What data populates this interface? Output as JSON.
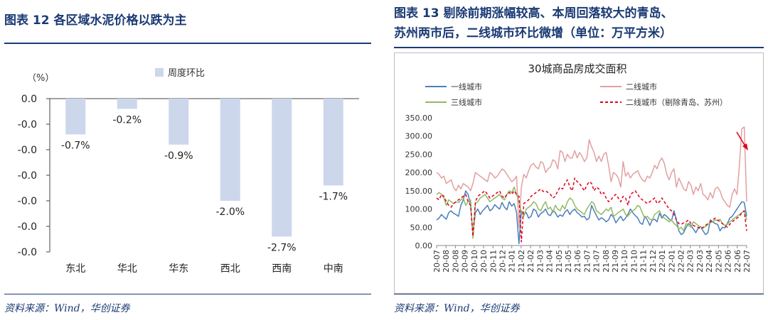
{
  "left": {
    "title": "图表 12   各区域水泥价格以跌为主",
    "source": "资料来源：Wind，华创证券"
  },
  "right": {
    "title_line1": "图表 13   剔除前期涨幅较高、本周回落较大的青岛、",
    "title_line2": "苏州两市后，二线城市环比微增（单位：万平方米）",
    "source": "资料来源：Wind，华创证券"
  },
  "chart_data": [
    {
      "type": "bar",
      "unit_label": "（%）",
      "series": [
        {
          "name": "周度环比",
          "values": [
            -0.7,
            -0.2,
            -0.9,
            -2.0,
            -2.7,
            -1.7
          ]
        }
      ],
      "categories": [
        "东北",
        "华北",
        "华东",
        "西北",
        "西南",
        "中南"
      ],
      "data_labels": [
        "-0.7%",
        "-0.2%",
        "-0.9%",
        "-2.0%",
        "-2.7%",
        "-1.7%"
      ],
      "yticks": [
        "0.0",
        "-0.0",
        "-0.0",
        "-0.0",
        "-0.0",
        "-0.0",
        "-0.0"
      ],
      "ylim": [
        -3.0,
        0.0
      ],
      "colors": {
        "bar": "#ccd7ec",
        "label": "#e0001c"
      },
      "legend_position": "top"
    },
    {
      "type": "line",
      "title": "30城商品房成交面积",
      "ylim": [
        0,
        350
      ],
      "yticks": [
        "0.00",
        "50.00",
        "100.00",
        "150.00",
        "200.00",
        "250.00",
        "300.00",
        "350.00"
      ],
      "xticks": [
        "20-07",
        "20-08",
        "20-08",
        "20-09",
        "20-10",
        "20-10",
        "20-11",
        "20-12",
        "21-01",
        "21-02",
        "21-02",
        "21-03",
        "21-04",
        "21-05",
        "21-05",
        "21-06",
        "21-07",
        "21-07",
        "21-08",
        "21-09",
        "21-10",
        "21-10",
        "21-11",
        "21-12",
        "22-01",
        "22-01",
        "22-02",
        "22-03",
        "22-03",
        "22-04",
        "22-05",
        "22-06",
        "22-06",
        "22-07"
      ],
      "legend_position": "top",
      "series": [
        {
          "name": "一线城市",
          "color": "#4a7ebb",
          "dash": "",
          "values": [
            70,
            75,
            85,
            78,
            72,
            90,
            95,
            88,
            85,
            80,
            110,
            125,
            150,
            140,
            110,
            32,
            90,
            100,
            85,
            95,
            102,
            110,
            95,
            100,
            112,
            105,
            100,
            118,
            105,
            98,
            120,
            108,
            115,
            90,
            5,
            95,
            85,
            90,
            75,
            80,
            100,
            95,
            78,
            88,
            92,
            100,
            85,
            82,
            96,
            90,
            78,
            84,
            80,
            92,
            98,
            85,
            95,
            100,
            90,
            85,
            78,
            80,
            70,
            75,
            110,
            95,
            82,
            70,
            76,
            72,
            65,
            70,
            85,
            78,
            62,
            72,
            80,
            68,
            75,
            86,
            100,
            90,
            82,
            76,
            62,
            58,
            80,
            70,
            55,
            70,
            72,
            65,
            88,
            75,
            85,
            80,
            72,
            68,
            95,
            70,
            40,
            30,
            35,
            50,
            60,
            55,
            45,
            35,
            48,
            52,
            40,
            30,
            35,
            70,
            65,
            60,
            58,
            40,
            50,
            48,
            60,
            75,
            80,
            90,
            100,
            110,
            120,
            118,
            80
          ]
        },
        {
          "name": "二线城市",
          "color": "#e2a0a0",
          "dash": "",
          "values": [
            200,
            195,
            185,
            190,
            170,
            175,
            180,
            160,
            150,
            165,
            155,
            170,
            165,
            160,
            150,
            170,
            200,
            195,
            190,
            185,
            180,
            175,
            200,
            195,
            185,
            190,
            200,
            210,
            205,
            195,
            185,
            175,
            180,
            190,
            50,
            160,
            195,
            185,
            205,
            220,
            225,
            215,
            210,
            230,
            225,
            200,
            210,
            215,
            235,
            230,
            210,
            260,
            255,
            230,
            250,
            240,
            240,
            260,
            240,
            255,
            245,
            230,
            240,
            290,
            270,
            255,
            230,
            245,
            230,
            250,
            255,
            220,
            175,
            200,
            195,
            185,
            160,
            230,
            190,
            200,
            185,
            195,
            200,
            205,
            190,
            180,
            175,
            190,
            185,
            200,
            220,
            210,
            230,
            240,
            225,
            195,
            180,
            200,
            210,
            160,
            185,
            170,
            155,
            150,
            175,
            165,
            140,
            160,
            150,
            170,
            140,
            135,
            125,
            145,
            130,
            155,
            160,
            150,
            130,
            120,
            110,
            105,
            140,
            155,
            140,
            220,
            320,
            325,
            120
          ]
        },
        {
          "name": "三线城市",
          "color": "#93b862",
          "dash": "",
          "values": [
            140,
            145,
            140,
            130,
            110,
            125,
            120,
            115,
            120,
            118,
            125,
            130,
            110,
            120,
            125,
            20,
            115,
            120,
            130,
            135,
            140,
            130,
            120,
            125,
            130,
            135,
            140,
            130,
            125,
            140,
            150,
            145,
            160,
            140,
            120,
            90,
            80,
            100,
            105,
            110,
            120,
            115,
            100,
            95,
            110,
            120,
            100,
            105,
            90,
            110,
            100,
            95,
            110,
            100,
            120,
            130,
            125,
            110,
            100,
            95,
            90,
            85,
            100,
            110,
            120,
            115,
            95,
            90,
            85,
            92,
            100,
            95,
            105,
            80,
            85,
            90,
            95,
            100,
            85,
            80,
            90,
            95,
            100,
            110,
            105,
            88,
            75,
            80,
            72,
            70,
            85,
            90,
            95,
            80,
            75,
            70,
            65,
            70,
            60,
            55,
            45,
            50,
            40,
            60,
            55,
            50,
            65,
            60,
            55,
            50,
            48,
            52,
            58,
            62,
            65,
            70,
            68,
            72,
            60,
            55,
            58,
            65,
            70,
            75,
            80,
            85,
            90,
            95,
            70
          ]
        },
        {
          "name": "二线城市（剔除青岛、苏州）",
          "color": "#e0001c",
          "dash": "4,3",
          "values": [
            130,
            125,
            140,
            135,
            120,
            110,
            105,
            115,
            120,
            125,
            130,
            135,
            140,
            120,
            110,
            25,
            120,
            135,
            140,
            145,
            150,
            140,
            130,
            135,
            140,
            145,
            150,
            135,
            130,
            140,
            145,
            140,
            150,
            140,
            135,
            10,
            115,
            120,
            125,
            135,
            140,
            145,
            150,
            155,
            148,
            150,
            145,
            140,
            130,
            135,
            150,
            160,
            155,
            170,
            180,
            160,
            150,
            185,
            175,
            170,
            160,
            150,
            165,
            175,
            170,
            150,
            160,
            155,
            140,
            145,
            130,
            120,
            125,
            135,
            140,
            130,
            120,
            135,
            130,
            110,
            140,
            145,
            150,
            140,
            130,
            125,
            120,
            115,
            120,
            125,
            130,
            115,
            120,
            130,
            120,
            110,
            100,
            95,
            85,
            70,
            60,
            58,
            62,
            65,
            70,
            60,
            55,
            52,
            50,
            45,
            50,
            55,
            60,
            65,
            70,
            75,
            70,
            65,
            60,
            55,
            50,
            58,
            65,
            70,
            75,
            80,
            90,
            95,
            40
          ]
        }
      ]
    }
  ]
}
